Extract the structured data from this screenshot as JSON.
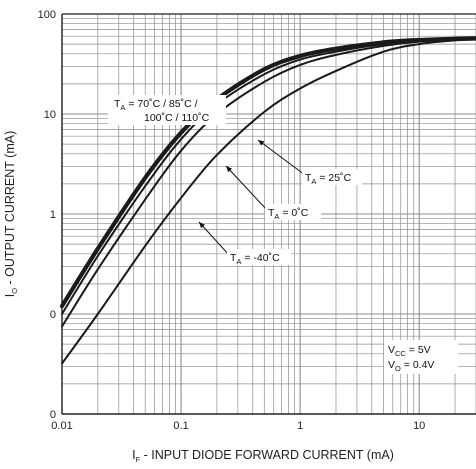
{
  "chart_data": {
    "type": "line",
    "title": "",
    "xlabel_main": "I",
    "xlabel_sub": "F",
    "xlabel_rest": " - INPUT DIODE FORWARD CURRENT (mA)",
    "ylabel_main": "I",
    "ylabel_sub": "O",
    "ylabel_rest": " - OUTPUT CURRENT (mA)",
    "x_scale": "log",
    "y_scale": "log",
    "xlim": [
      0.01,
      30
    ],
    "ylim": [
      0.01,
      100
    ],
    "x_tick_labels": [
      "0.01",
      "0.1",
      "1",
      "10"
    ],
    "x_tick_values": [
      0.01,
      0.1,
      1,
      10
    ],
    "y_tick_labels": [
      "0",
      "0",
      "1",
      "10",
      "100"
    ],
    "y_tick_values": [
      0.01,
      0.1,
      1,
      10,
      100
    ],
    "grid": true,
    "series": [
      {
        "name": "TA = 70°C / 85°C / 100°C / 110°C",
        "stroke": 4.2,
        "points": [
          [
            0.01,
            0.12
          ],
          [
            0.02,
            0.45
          ],
          [
            0.05,
            2.3
          ],
          [
            0.1,
            6.5
          ],
          [
            0.2,
            14
          ],
          [
            0.5,
            28
          ],
          [
            1,
            38
          ],
          [
            2,
            45
          ],
          [
            5,
            52
          ],
          [
            10,
            55
          ],
          [
            20,
            56.5
          ],
          [
            30,
            57
          ]
        ]
      },
      {
        "name": "TA = 25°C",
        "stroke": 2,
        "points": [
          [
            0.01,
            0.1
          ],
          [
            0.02,
            0.38
          ],
          [
            0.05,
            1.9
          ],
          [
            0.1,
            5.6
          ],
          [
            0.2,
            12.5
          ],
          [
            0.5,
            25
          ],
          [
            1,
            35
          ],
          [
            2,
            42
          ],
          [
            5,
            50
          ],
          [
            10,
            54
          ],
          [
            20,
            56
          ],
          [
            30,
            56.5
          ]
        ]
      },
      {
        "name": "TA = 0°C",
        "stroke": 2,
        "points": [
          [
            0.01,
            0.075
          ],
          [
            0.02,
            0.28
          ],
          [
            0.05,
            1.4
          ],
          [
            0.1,
            4.3
          ],
          [
            0.2,
            10
          ],
          [
            0.5,
            21
          ],
          [
            1,
            31
          ],
          [
            2,
            39
          ],
          [
            5,
            48
          ],
          [
            10,
            53
          ],
          [
            20,
            55.5
          ],
          [
            30,
            56
          ]
        ]
      },
      {
        "name": "TA = -40°C",
        "stroke": 2,
        "points": [
          [
            0.01,
            0.032
          ],
          [
            0.02,
            0.1
          ],
          [
            0.05,
            0.48
          ],
          [
            0.1,
            1.45
          ],
          [
            0.2,
            3.9
          ],
          [
            0.5,
            10.5
          ],
          [
            1,
            18
          ],
          [
            2,
            27
          ],
          [
            5,
            42
          ],
          [
            10,
            50
          ],
          [
            20,
            54.5
          ],
          [
            30,
            55.5
          ]
        ]
      }
    ],
    "annotations": {
      "hot": {
        "line1_pre": "T",
        "line1_sub": "A",
        "line1_post": " = 70˚C / 85˚C /",
        "line2": "100˚C / 110˚C"
      },
      "t25": {
        "pre": "T",
        "sub": "A",
        "post": " = 25˚C"
      },
      "t0": {
        "pre": "T",
        "sub": "A",
        "post": " = 0˚C"
      },
      "tm40": {
        "pre": "T",
        "sub": "A",
        "post": " = -40˚C"
      },
      "vcc": {
        "pre": "V",
        "sub": "CC",
        "post": " = 5V"
      },
      "vo": {
        "pre": "V",
        "sub": "O",
        "post": " = 0.4V"
      }
    },
    "colors": {
      "line": "#1a1a1a",
      "grid": "#8c8c8c",
      "background": "#ffffff"
    }
  }
}
